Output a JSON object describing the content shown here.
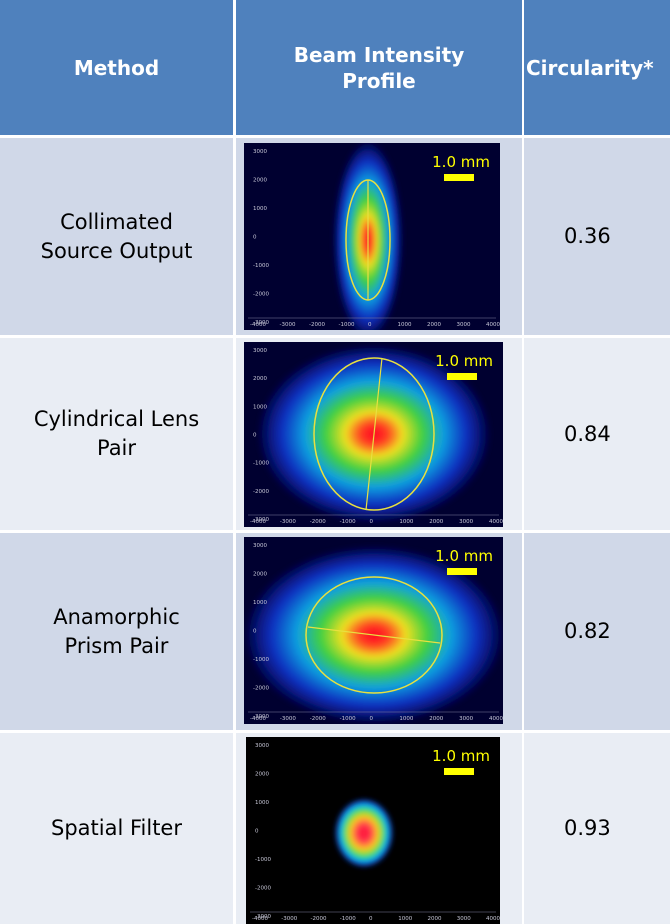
{
  "table": {
    "header": [
      [
        "Method"
      ],
      [
        "Beam Intensity",
        "Profile"
      ],
      [
        "Circularity*"
      ]
    ],
    "rows": [
      {
        "method": [
          "Collimated",
          "Source Output"
        ],
        "profile": {
          "scale_label": "1.0 mm",
          "yticks": [
            "3000",
            "2000",
            "1000",
            "0",
            "-1000",
            "-2000",
            "-3000"
          ],
          "xticks": [
            "-4000",
            "-3000",
            "-2000",
            "-1000",
            "0",
            "1000",
            "2000",
            "3000",
            "4000"
          ]
        },
        "circularity": "0.36"
      },
      {
        "method": [
          "Cylindrical Lens",
          "Pair"
        ],
        "profile": {
          "scale_label": "1.0 mm",
          "yticks": [
            "3000",
            "2000",
            "1000",
            "0",
            "-1000",
            "-2000",
            "-3000"
          ],
          "xticks": [
            "-4000",
            "-3000",
            "-2000",
            "-1000",
            "0",
            "1000",
            "2000",
            "3000",
            "4000"
          ]
        },
        "circularity": "0.84"
      },
      {
        "method": [
          "Anamorphic",
          "Prism Pair"
        ],
        "profile": {
          "scale_label": "1.0 mm",
          "yticks": [
            "3000",
            "2000",
            "1000",
            "0",
            "-1000",
            "-2000",
            "-3000"
          ],
          "xticks": [
            "-4000",
            "-3000",
            "-2000",
            "-1000",
            "0",
            "1000",
            "2000",
            "3000",
            "4000"
          ]
        },
        "circularity": "0.82"
      },
      {
        "method": [
          "Spatial Filter"
        ],
        "profile": {
          "scale_label": "1.0 mm",
          "yticks": [
            "3000",
            "2000",
            "1000",
            "0",
            "-1000",
            "-2000",
            "-3000"
          ],
          "xticks": [
            "-4000",
            "-3000",
            "-2000",
            "-1000",
            "0",
            "1000",
            "2000",
            "3000",
            "4000"
          ]
        },
        "circularity": "0.93"
      }
    ]
  }
}
